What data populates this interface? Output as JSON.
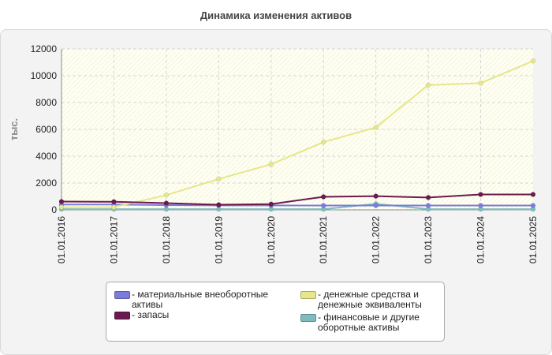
{
  "title": "Динамика изменения активов",
  "chart_data": {
    "type": "line",
    "title": "Динамика изменения активов",
    "xlabel": "",
    "ylabel": "тыс.",
    "ylim": [
      0,
      12000
    ],
    "yticks": [
      0,
      2000,
      4000,
      6000,
      8000,
      10000,
      12000
    ],
    "grid": true,
    "legend_position": "bottom",
    "categories": [
      "01.01.2016",
      "01.01.2017",
      "01.01.2018",
      "01.01.2019",
      "01.01.2020",
      "01.01.2021",
      "01.01.2022",
      "01.01.2023",
      "01.01.2024",
      "01.01.2025"
    ],
    "series": [
      {
        "name": "- материальные внеоборотные\nактивы",
        "color": "#7b7bdb",
        "values": [
          400,
          400,
          350,
          330,
          330,
          320,
          320,
          320,
          320,
          320
        ]
      },
      {
        "name": "- запасы",
        "color": "#6b1a4f",
        "values": [
          620,
          600,
          500,
          380,
          430,
          970,
          1020,
          920,
          1150,
          1150
        ]
      },
      {
        "name": "- денежные средства и\nденежные эквиваленты",
        "color": "#e6e68a",
        "values": [
          200,
          200,
          1100,
          2300,
          3400,
          5050,
          6150,
          9300,
          9450,
          11100
        ]
      },
      {
        "name": "- финансовые и другие\nоборотные активы",
        "color": "#7fbcc0",
        "values": [
          50,
          50,
          50,
          50,
          50,
          50,
          450,
          50,
          50,
          50
        ]
      }
    ]
  }
}
